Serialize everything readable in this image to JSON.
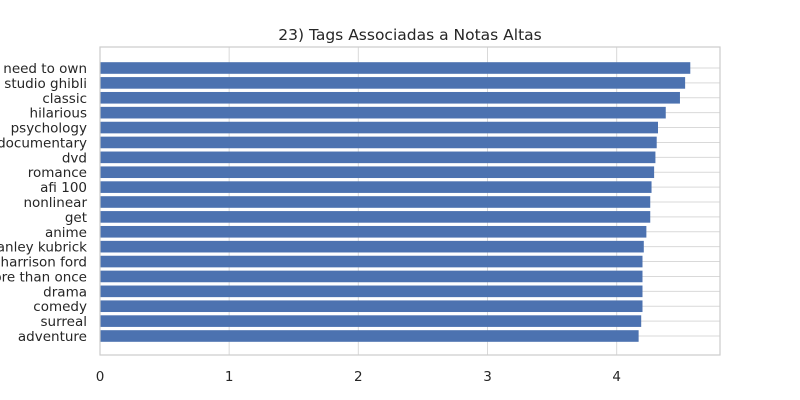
{
  "chart_data": {
    "type": "bar",
    "orientation": "horizontal",
    "title": "23) Tags Associadas a Notas Altas",
    "xlabel": "",
    "ylabel": "",
    "xlim": [
      0,
      4.8
    ],
    "xticks": [
      "0",
      "1",
      "2",
      "3",
      "4"
    ],
    "grid": true,
    "bar_color": "#4c72b0",
    "categories": [
      "need to own",
      "studio ghibli",
      "classic",
      "hilarious",
      "psychology",
      "documentary",
      "dvd",
      "romance",
      "afi 100",
      "nonlinear",
      "get",
      "anime",
      "stanley kubrick",
      "harrison ford",
      "more than once",
      "drama",
      "comedy",
      "surreal",
      "adventure"
    ],
    "values": [
      4.57,
      4.53,
      4.49,
      4.38,
      4.32,
      4.31,
      4.3,
      4.29,
      4.27,
      4.26,
      4.26,
      4.23,
      4.21,
      4.2,
      4.2,
      4.2,
      4.2,
      4.19,
      4.17
    ]
  }
}
